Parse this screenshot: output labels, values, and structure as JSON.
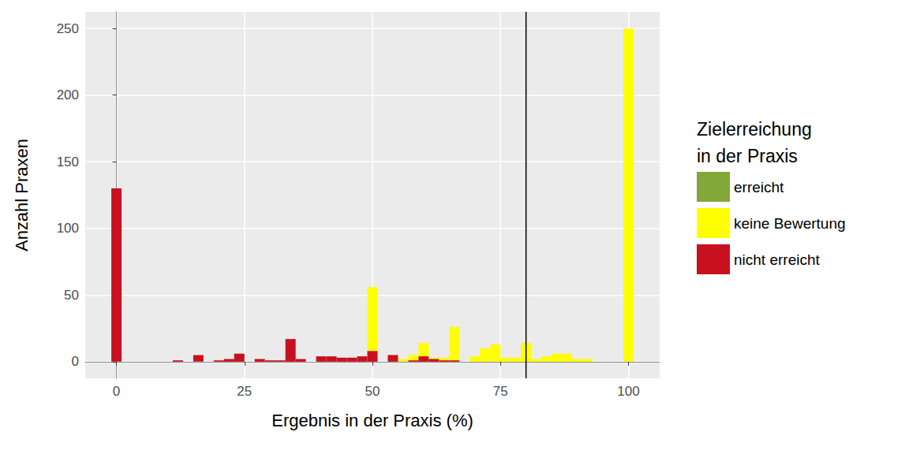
{
  "chart_data": {
    "type": "histogram",
    "x_label": "Ergebnis in der Praxis (%)",
    "y_label": "Anzahl Praxen",
    "legend_title": "Zielerreichung\nin der Praxis",
    "bins": [
      -1,
      1,
      3,
      5,
      7,
      9,
      11,
      13,
      15,
      17,
      19,
      21,
      23,
      25,
      27,
      29,
      31,
      33,
      35,
      37,
      39,
      41,
      43,
      45,
      47,
      49,
      51,
      53,
      55,
      57,
      59,
      61,
      63,
      65,
      67,
      69,
      71,
      73,
      75,
      77,
      79,
      81,
      83,
      85,
      87,
      89,
      91,
      93,
      95,
      97,
      99,
      101
    ],
    "series": [
      {
        "name": "erreicht",
        "color": "#83A83A",
        "values": [
          0,
          0,
          0,
          0,
          0,
          0,
          0,
          0,
          0,
          0,
          0,
          0,
          0,
          0,
          0,
          0,
          0,
          0,
          0,
          0,
          0,
          0,
          0,
          0,
          0,
          0,
          0,
          0,
          0,
          0,
          0,
          0,
          0,
          0,
          0,
          0,
          0,
          0,
          0,
          0,
          0,
          0,
          0,
          0,
          0,
          0,
          0,
          0,
          0,
          0,
          0
        ]
      },
      {
        "name": "keine Bewertung",
        "color": "#FFFF00",
        "values": [
          0,
          0,
          0,
          0,
          0,
          0,
          0,
          0,
          0,
          0,
          0,
          0,
          0,
          0,
          0,
          0,
          0,
          0,
          0,
          0,
          0,
          0,
          0,
          0,
          0,
          48,
          0,
          0,
          2,
          4,
          10,
          1,
          2,
          25,
          0,
          4,
          10,
          13,
          3,
          3,
          14,
          2,
          4,
          6,
          6,
          2,
          2,
          0,
          0,
          0,
          250
        ]
      },
      {
        "name": "nicht erreicht",
        "color": "#C8101E",
        "values": [
          130,
          0,
          0,
          0,
          0,
          0,
          1,
          0,
          5,
          0,
          1,
          2,
          6,
          0,
          2,
          1,
          1,
          17,
          2,
          0,
          4,
          4,
          3,
          3,
          4,
          8,
          0,
          5,
          0,
          1,
          4,
          2,
          1,
          1,
          0,
          0,
          0,
          0,
          0,
          0,
          0,
          0,
          0,
          0,
          0,
          0,
          0,
          0,
          0,
          0,
          0
        ]
      }
    ],
    "stacked": true,
    "xlim": [
      -6.1,
      106.1
    ],
    "xticks": [
      0,
      25,
      50,
      75,
      100
    ],
    "ylim": [
      -12.5,
      262.5
    ],
    "yticks": [
      0,
      50,
      100,
      150,
      200,
      250
    ],
    "grid": true,
    "legend": "right",
    "vline": 80
  }
}
